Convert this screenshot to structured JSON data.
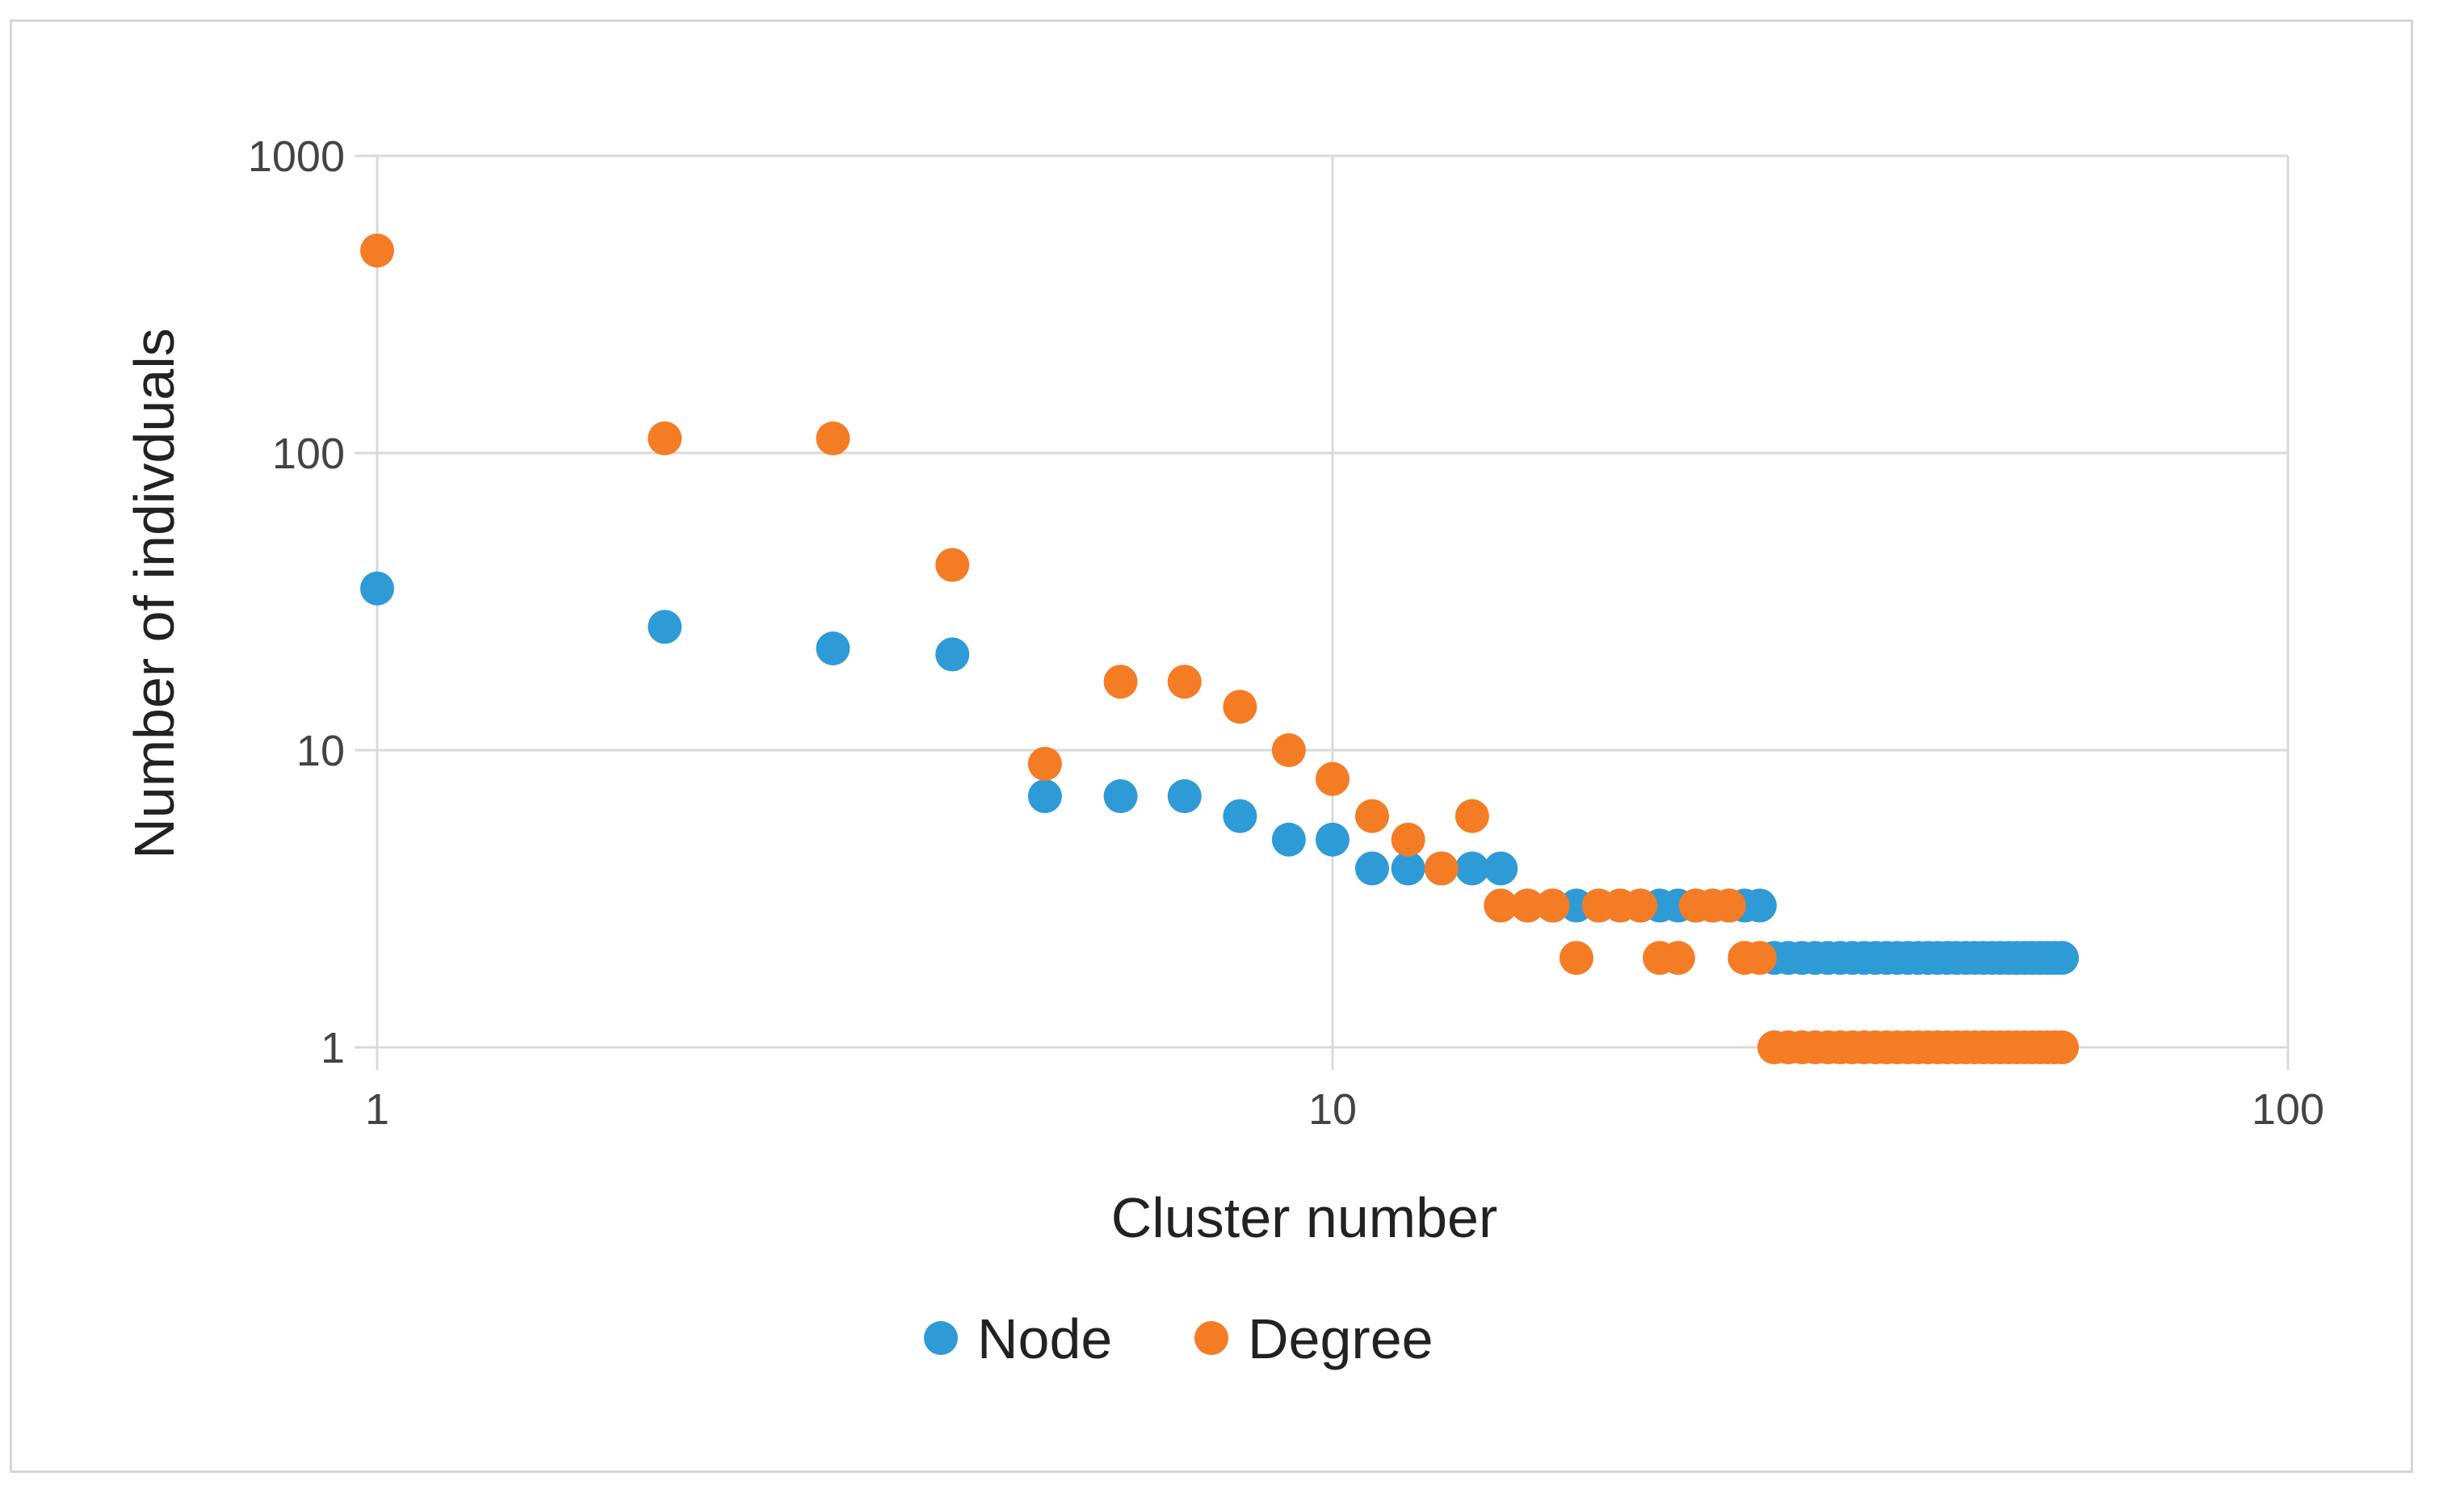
{
  "chart_data": {
    "type": "scatter",
    "title": "",
    "xlabel": "Cluster number",
    "ylabel": "Number of indivduals",
    "x_scale": "log",
    "y_scale": "log",
    "xlim": [
      1,
      100
    ],
    "ylim": [
      1,
      1000
    ],
    "x_ticks": [
      "1",
      "10",
      "100"
    ],
    "y_ticks": [
      "1",
      "10",
      "100",
      "1000"
    ],
    "grid": true,
    "legend_position": "bottom",
    "series": [
      {
        "name": "Node",
        "color": "#2e9bd6",
        "x": [
          1,
          2,
          3,
          4,
          5,
          6,
          7,
          8,
          9,
          10,
          11,
          12,
          13,
          14,
          15,
          16,
          17,
          18,
          19,
          20,
          21,
          22,
          23,
          24,
          25,
          26,
          27,
          28,
          29,
          30,
          31,
          32,
          33,
          34,
          35,
          36,
          37,
          38,
          39,
          40,
          41,
          42,
          43,
          44,
          45,
          46,
          47,
          48,
          49,
          50,
          51,
          52,
          53,
          54,
          55,
          56,
          57,
          58
        ],
        "y": [
          35,
          26,
          22,
          21,
          7,
          7,
          7,
          6,
          5,
          5,
          4,
          4,
          4,
          4,
          4,
          3,
          3,
          3,
          3,
          3,
          3,
          3,
          3,
          3,
          3,
          3,
          3,
          3,
          2,
          2,
          2,
          2,
          2,
          2,
          2,
          2,
          2,
          2,
          2,
          2,
          2,
          2,
          2,
          2,
          2,
          2,
          2,
          2,
          2,
          2,
          2,
          2,
          2,
          2,
          2,
          2,
          2,
          2
        ]
      },
      {
        "name": "Degree",
        "color": "#f47c25",
        "x": [
          1,
          2,
          3,
          4,
          5,
          6,
          7,
          8,
          9,
          10,
          11,
          12,
          13,
          14,
          15,
          16,
          17,
          18,
          19,
          20,
          21,
          22,
          23,
          24,
          25,
          26,
          27,
          28,
          29,
          30,
          31,
          32,
          33,
          34,
          35,
          36,
          37,
          38,
          39,
          40,
          41,
          42,
          43,
          44,
          45,
          46,
          47,
          48,
          49,
          50,
          51,
          52,
          53,
          54,
          55,
          56,
          57,
          58
        ],
        "y": [
          480,
          112,
          112,
          42,
          9,
          17,
          17,
          14,
          10,
          8,
          6,
          5,
          4,
          6,
          3,
          3,
          3,
          2,
          3,
          3,
          3,
          2,
          2,
          3,
          3,
          3,
          2,
          2,
          1,
          1,
          1,
          1,
          1,
          1,
          1,
          1,
          1,
          1,
          1,
          1,
          1,
          1,
          1,
          1,
          1,
          1,
          1,
          1,
          1,
          1,
          1,
          1,
          1,
          1,
          1,
          1,
          1,
          1
        ]
      }
    ]
  }
}
